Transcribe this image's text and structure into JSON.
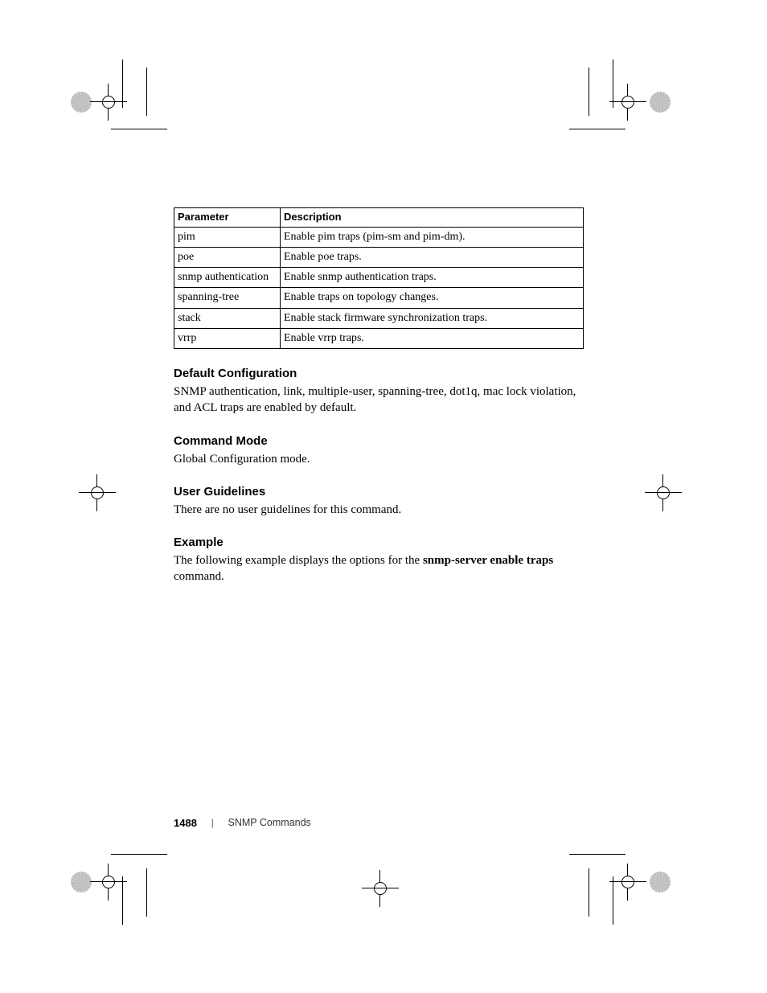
{
  "table": {
    "headers": {
      "param": "Parameter",
      "desc": "Description"
    },
    "rows": [
      {
        "param": "pim",
        "desc": "Enable pim traps (pim-sm and pim-dm)."
      },
      {
        "param": "poe",
        "desc": "Enable poe traps."
      },
      {
        "param": "snmp authentication",
        "desc": "Enable snmp authentication traps."
      },
      {
        "param": "spanning-tree",
        "desc": "Enable traps on topology changes."
      },
      {
        "param": "stack",
        "desc": "Enable stack firmware synchronization traps."
      },
      {
        "param": "vrrp",
        "desc": "Enable vrrp traps."
      }
    ]
  },
  "sections": {
    "default_cfg": {
      "heading": "Default Configuration",
      "body": "SNMP authentication, link, multiple-user, spanning-tree, dot1q, mac lock violation, and ACL traps are enabled by default."
    },
    "cmd_mode": {
      "heading": "Command Mode",
      "body": "Global Configuration mode."
    },
    "user_guidelines": {
      "heading": "User Guidelines",
      "body": "There are no user guidelines for this command."
    },
    "example": {
      "heading": "Example",
      "body_pre": "The following example displays the options for the ",
      "body_bold": "snmp-server enable traps",
      "body_post": " command."
    }
  },
  "footer": {
    "page_number": "1488",
    "separator": "|",
    "chapter": "SNMP Commands"
  },
  "colors": {
    "text": "#000000",
    "background": "#ffffff",
    "border": "#000000"
  }
}
